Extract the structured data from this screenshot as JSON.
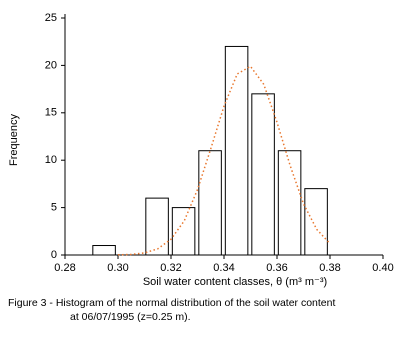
{
  "chart_data": {
    "type": "histogram",
    "x_label": "Soil water content classes, θ   (m³ m⁻³)",
    "y_label": "Frequency",
    "caption": [
      "Figure 3 - Histogram of the normal distribution of the soil water content",
      "at 06/07/1995 (z=0.25 m)."
    ],
    "bins": [
      0.29,
      0.3,
      0.31,
      0.32,
      0.33,
      0.34,
      0.35,
      0.36,
      0.37,
      0.38
    ],
    "values": [
      1,
      0,
      6,
      5,
      11,
      22,
      17,
      11,
      7
    ],
    "color": "#ffffff",
    "curve": {
      "color": "#e8772e",
      "x": [
        0.3,
        0.305,
        0.31,
        0.315,
        0.32,
        0.325,
        0.33,
        0.335,
        0.34,
        0.345,
        0.35,
        0.355,
        0.36,
        0.365,
        0.37,
        0.375,
        0.38
      ],
      "values": [
        0.02,
        0.06,
        0.22,
        0.65,
        1.66,
        3.6,
        6.9,
        11.2,
        15.7,
        19.1,
        19.9,
        18.0,
        14.0,
        9.4,
        5.4,
        2.7,
        1.2
      ]
    },
    "xlim": [
      0.28,
      0.4
    ],
    "xticks": [
      0.28,
      {
        "value": 0.3,
        "label": "0.30"
      },
      0.32,
      0.34,
      0.36,
      0.38,
      {
        "value": 0.4,
        "label": "0.40"
      }
    ],
    "ylim": [
      0,
      25
    ],
    "yticks": [
      0,
      5,
      10,
      15,
      20,
      25
    ]
  }
}
